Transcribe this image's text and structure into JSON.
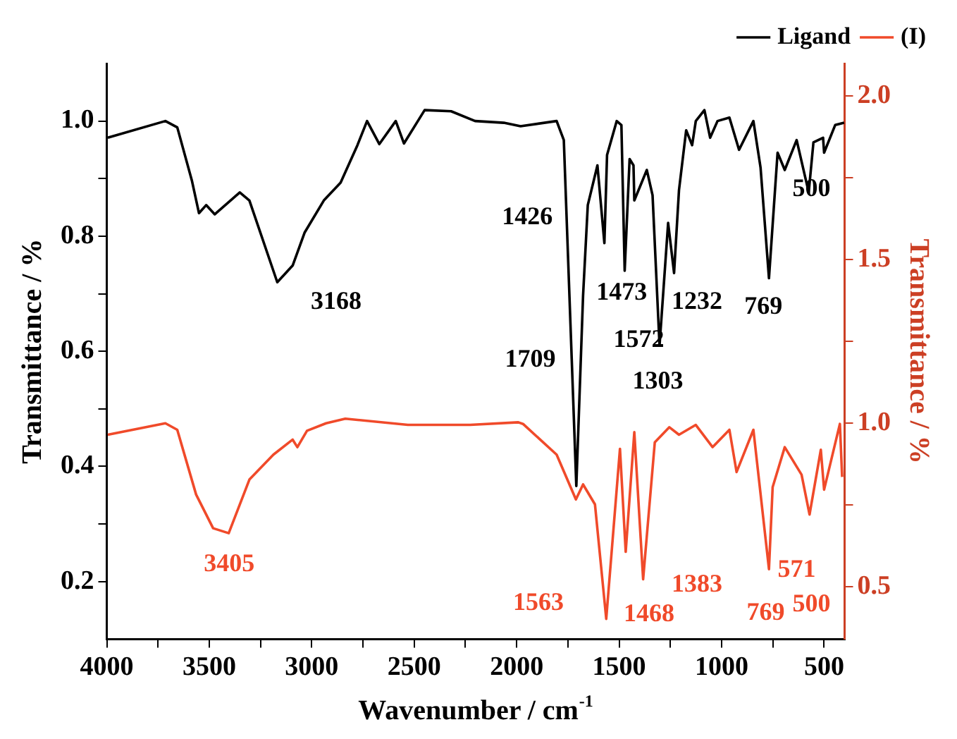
{
  "chart_data": {
    "type": "line",
    "xlabel": "Wavenumber / cm$^{-1}$",
    "ylabel": "Transmittance / %",
    "y2label": "Transmittance / %",
    "xlim": [
      4000,
      400
    ],
    "xticks": [
      4000,
      {
        "value": 3750,
        "label": null
      },
      3500,
      {
        "value": 3250,
        "label": null
      },
      3000,
      {
        "value": 2750,
        "label": null
      },
      2500,
      {
        "value": 2250,
        "label": null
      },
      2000,
      {
        "value": 1750,
        "label": null
      },
      1500,
      {
        "value": 1250,
        "label": null
      },
      1000,
      {
        "value": 750,
        "label": null
      },
      500
    ],
    "ylim": [
      0.1,
      1.1
    ],
    "yticks": [
      {
        "value": 0.2,
        "label": "0.2"
      },
      {
        "value": 0.3,
        "label": null
      },
      {
        "value": 0.4,
        "label": "0.4"
      },
      {
        "value": 0.5,
        "label": null
      },
      {
        "value": 0.6,
        "label": "0.6"
      },
      {
        "value": 0.7,
        "label": null
      },
      {
        "value": 0.8,
        "label": "0.8"
      },
      {
        "value": 0.9,
        "label": null
      },
      {
        "value": 1.0,
        "label": "1.0"
      }
    ],
    "y2lim": [
      0.34,
      2.1
    ],
    "y2ticks": [
      {
        "value": 0.5,
        "label": "0.5"
      },
      {
        "value": 0.75,
        "label": null
      },
      {
        "value": 1.0,
        "label": "1.0"
      },
      {
        "value": 1.25,
        "label": null
      },
      {
        "value": 1.5,
        "label": "1.5"
      },
      {
        "value": 1.75,
        "label": null
      },
      {
        "value": 2.0,
        "label": "2.0"
      }
    ],
    "legend": "top right",
    "grid": false,
    "marker": "none",
    "line_style": "solid",
    "series": [
      {
        "name": "Ligand",
        "color": "#000000",
        "x": [
          3995,
          3714,
          3656,
          3585,
          3550,
          3515,
          3473,
          3351,
          3304,
          3168,
          3093,
          3035,
          2941,
          2859,
          2777,
          2730,
          2670,
          2590,
          2550,
          2449,
          2320,
          2203,
          2063,
          1981,
          1805,
          1770,
          1709,
          1676,
          1653,
          1606,
          1572,
          1559,
          1512,
          1489,
          1473,
          1449,
          1430,
          1426,
          1365,
          1337,
          1303,
          1261,
          1232,
          1208,
          1173,
          1144,
          1126,
          1084,
          1056,
          1020,
          962,
          915,
          845,
          810,
          769,
          727,
          692,
          634,
          575,
          552,
          505,
          500,
          446,
          402
        ],
        "values": [
          0.971,
          1.0,
          0.989,
          0.897,
          0.84,
          0.854,
          0.838,
          0.876,
          0.862,
          0.72,
          0.749,
          0.806,
          0.862,
          0.893,
          0.958,
          1.0,
          0.96,
          1.0,
          0.961,
          1.019,
          1.017,
          1.0,
          0.997,
          0.991,
          1.0,
          0.967,
          0.366,
          0.697,
          0.854,
          0.923,
          0.788,
          0.941,
          1.0,
          0.993,
          0.74,
          0.934,
          0.923,
          0.862,
          0.915,
          0.871,
          0.61,
          0.823,
          0.736,
          0.88,
          0.984,
          0.958,
          1.0,
          1.019,
          0.971,
          1.0,
          1.006,
          0.95,
          1.0,
          0.919,
          0.727,
          0.945,
          0.915,
          0.967,
          0.876,
          0.963,
          0.971,
          0.945,
          0.993,
          0.997
        ]
      },
      {
        "name": "(I)",
        "color": "#f04a2a",
        "axis": "y2",
        "x": [
          3995,
          3714,
          3656,
          3564,
          3481,
          3405,
          3304,
          3187,
          3093,
          3070,
          3023,
          2930,
          2836,
          2531,
          2227,
          1992,
          1969,
          1805,
          1711,
          1676,
          1618,
          1563,
          1496,
          1468,
          1426,
          1383,
          1326,
          1255,
          1208,
          1126,
          1044,
          962,
          927,
          845,
          769,
          751,
          692,
          610,
          571,
          516,
          500,
          423,
          412
        ],
        "values": [
          0.965,
          1.0,
          0.98,
          0.782,
          0.679,
          0.664,
          0.828,
          0.904,
          0.95,
          0.927,
          0.977,
          1.0,
          1.014,
          0.995,
          0.995,
          1.003,
          0.998,
          0.904,
          0.767,
          0.813,
          0.752,
          0.402,
          0.922,
          0.607,
          0.973,
          0.523,
          0.942,
          0.988,
          0.965,
          0.995,
          0.927,
          0.98,
          0.851,
          0.98,
          0.554,
          0.805,
          0.927,
          0.843,
          0.721,
          0.919,
          0.797,
          0.998,
          0.836
        ]
      }
    ],
    "annotations": [
      "3168",
      "1709",
      "1426",
      "1572",
      "1473",
      "1303",
      "1232",
      "769",
      "500",
      "3405",
      "1563",
      "1468",
      "1383",
      "769",
      "571",
      "500"
    ]
  }
}
